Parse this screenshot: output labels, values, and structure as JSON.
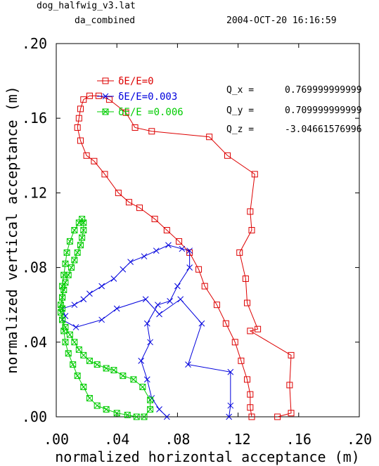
{
  "header": {
    "file": "dog_halfwig_v3.lat",
    "subtitle": "da_combined",
    "timestamp": "2004-OCT-20  16:16:59"
  },
  "chart_data": {
    "type": "line",
    "xlabel": "normalized horizontal acceptance (m)",
    "ylabel": "normalized vertical acceptance (m)",
    "xlim": [
      0.0,
      0.2
    ],
    "ylim": [
      0.0,
      0.2
    ],
    "xticks": [
      0.0,
      0.04,
      0.08,
      0.12,
      0.16,
      0.2
    ],
    "yticks": [
      0.0,
      0.04,
      0.08,
      0.12,
      0.16,
      0.2
    ],
    "xtick_labels": [
      ".00",
      ".04",
      ".08",
      ".12",
      ".16",
      ".20"
    ],
    "ytick_labels": [
      ".00",
      ".04",
      ".08",
      ".12",
      ".16",
      ".20"
    ],
    "grid": false,
    "legend_position": "top-left inside plot",
    "series": [
      {
        "name": "δE/E=0",
        "color": "#dd0000",
        "marker": "square",
        "points": [
          [
            0.146,
            0.0
          ],
          [
            0.155,
            0.002
          ],
          [
            0.154,
            0.017
          ],
          [
            0.155,
            0.033
          ],
          [
            0.128,
            0.046
          ],
          [
            0.133,
            0.047
          ],
          [
            0.126,
            0.061
          ],
          [
            0.125,
            0.074
          ],
          [
            0.121,
            0.088
          ],
          [
            0.129,
            0.1
          ],
          [
            0.128,
            0.11
          ],
          [
            0.131,
            0.13
          ],
          [
            0.113,
            0.14
          ],
          [
            0.101,
            0.15
          ],
          [
            0.063,
            0.153
          ],
          [
            0.052,
            0.155
          ],
          [
            0.046,
            0.163
          ],
          [
            0.035,
            0.17
          ],
          [
            0.028,
            0.172
          ],
          [
            0.022,
            0.172
          ],
          [
            0.018,
            0.17
          ],
          [
            0.016,
            0.165
          ],
          [
            0.015,
            0.16
          ],
          [
            0.014,
            0.155
          ],
          [
            0.016,
            0.148
          ],
          [
            0.02,
            0.14
          ],
          [
            0.025,
            0.137
          ],
          [
            0.032,
            0.13
          ],
          [
            0.041,
            0.12
          ],
          [
            0.048,
            0.115
          ],
          [
            0.055,
            0.112
          ],
          [
            0.065,
            0.106
          ],
          [
            0.073,
            0.1
          ],
          [
            0.081,
            0.094
          ],
          [
            0.088,
            0.088
          ],
          [
            0.094,
            0.079
          ],
          [
            0.098,
            0.07
          ],
          [
            0.106,
            0.06
          ],
          [
            0.112,
            0.05
          ],
          [
            0.118,
            0.04
          ],
          [
            0.122,
            0.03
          ],
          [
            0.126,
            0.02
          ],
          [
            0.128,
            0.012
          ],
          [
            0.128,
            0.005
          ],
          [
            0.129,
            0.0
          ]
        ]
      },
      {
        "name": "δE/E=0.003",
        "color": "#0000dd",
        "marker": "x",
        "points": [
          [
            0.114,
            0.0
          ],
          [
            0.115,
            0.006
          ],
          [
            0.115,
            0.024
          ],
          [
            0.087,
            0.028
          ],
          [
            0.096,
            0.05
          ],
          [
            0.082,
            0.063
          ],
          [
            0.068,
            0.055
          ],
          [
            0.059,
            0.063
          ],
          [
            0.04,
            0.058
          ],
          [
            0.03,
            0.052
          ],
          [
            0.013,
            0.048
          ],
          [
            0.004,
            0.052
          ],
          [
            0.006,
            0.054
          ],
          [
            0.004,
            0.058
          ],
          [
            0.012,
            0.06
          ],
          [
            0.018,
            0.063
          ],
          [
            0.022,
            0.066
          ],
          [
            0.03,
            0.07
          ],
          [
            0.038,
            0.074
          ],
          [
            0.044,
            0.079
          ],
          [
            0.049,
            0.083
          ],
          [
            0.058,
            0.086
          ],
          [
            0.066,
            0.089
          ],
          [
            0.074,
            0.092
          ],
          [
            0.083,
            0.09
          ],
          [
            0.088,
            0.089
          ],
          [
            0.088,
            0.08
          ],
          [
            0.08,
            0.07
          ],
          [
            0.075,
            0.062
          ],
          [
            0.067,
            0.06
          ],
          [
            0.06,
            0.05
          ],
          [
            0.062,
            0.04
          ],
          [
            0.056,
            0.03
          ],
          [
            0.06,
            0.02
          ],
          [
            0.063,
            0.01
          ],
          [
            0.068,
            0.004
          ],
          [
            0.073,
            0.0
          ]
        ]
      },
      {
        "name": "δE/E =0.006",
        "color": "#00cc00",
        "marker": "square-x",
        "points": [
          [
            0.058,
            0.0
          ],
          [
            0.062,
            0.004
          ],
          [
            0.062,
            0.009
          ],
          [
            0.057,
            0.016
          ],
          [
            0.051,
            0.02
          ],
          [
            0.044,
            0.022
          ],
          [
            0.038,
            0.025
          ],
          [
            0.033,
            0.026
          ],
          [
            0.027,
            0.028
          ],
          [
            0.022,
            0.03
          ],
          [
            0.018,
            0.033
          ],
          [
            0.015,
            0.036
          ],
          [
            0.012,
            0.04
          ],
          [
            0.009,
            0.044
          ],
          [
            0.006,
            0.048
          ],
          [
            0.004,
            0.052
          ],
          [
            0.003,
            0.056
          ],
          [
            0.003,
            0.06
          ],
          [
            0.004,
            0.064
          ],
          [
            0.005,
            0.068
          ],
          [
            0.006,
            0.072
          ],
          [
            0.008,
            0.076
          ],
          [
            0.01,
            0.08
          ],
          [
            0.012,
            0.084
          ],
          [
            0.014,
            0.088
          ],
          [
            0.016,
            0.092
          ],
          [
            0.017,
            0.096
          ],
          [
            0.018,
            0.1
          ],
          [
            0.018,
            0.104
          ],
          [
            0.017,
            0.106
          ],
          [
            0.015,
            0.104
          ],
          [
            0.012,
            0.1
          ],
          [
            0.009,
            0.094
          ],
          [
            0.007,
            0.088
          ],
          [
            0.006,
            0.082
          ],
          [
            0.005,
            0.076
          ],
          [
            0.004,
            0.07
          ],
          [
            0.004,
            0.064
          ],
          [
            0.004,
            0.058
          ],
          [
            0.004,
            0.052
          ],
          [
            0.005,
            0.046
          ],
          [
            0.006,
            0.04
          ],
          [
            0.008,
            0.034
          ],
          [
            0.011,
            0.028
          ],
          [
            0.014,
            0.022
          ],
          [
            0.018,
            0.016
          ],
          [
            0.022,
            0.01
          ],
          [
            0.027,
            0.006
          ],
          [
            0.033,
            0.004
          ],
          [
            0.04,
            0.002
          ],
          [
            0.047,
            0.001
          ],
          [
            0.053,
            0.0
          ]
        ]
      }
    ],
    "annotations": [
      {
        "label": "Q_x  =",
        "value": "0.769999999999"
      },
      {
        "label": "Q_y  =",
        "value": "0.709999999999"
      },
      {
        "label": "Q_z  =",
        "value": "-3.04661576996"
      }
    ]
  }
}
